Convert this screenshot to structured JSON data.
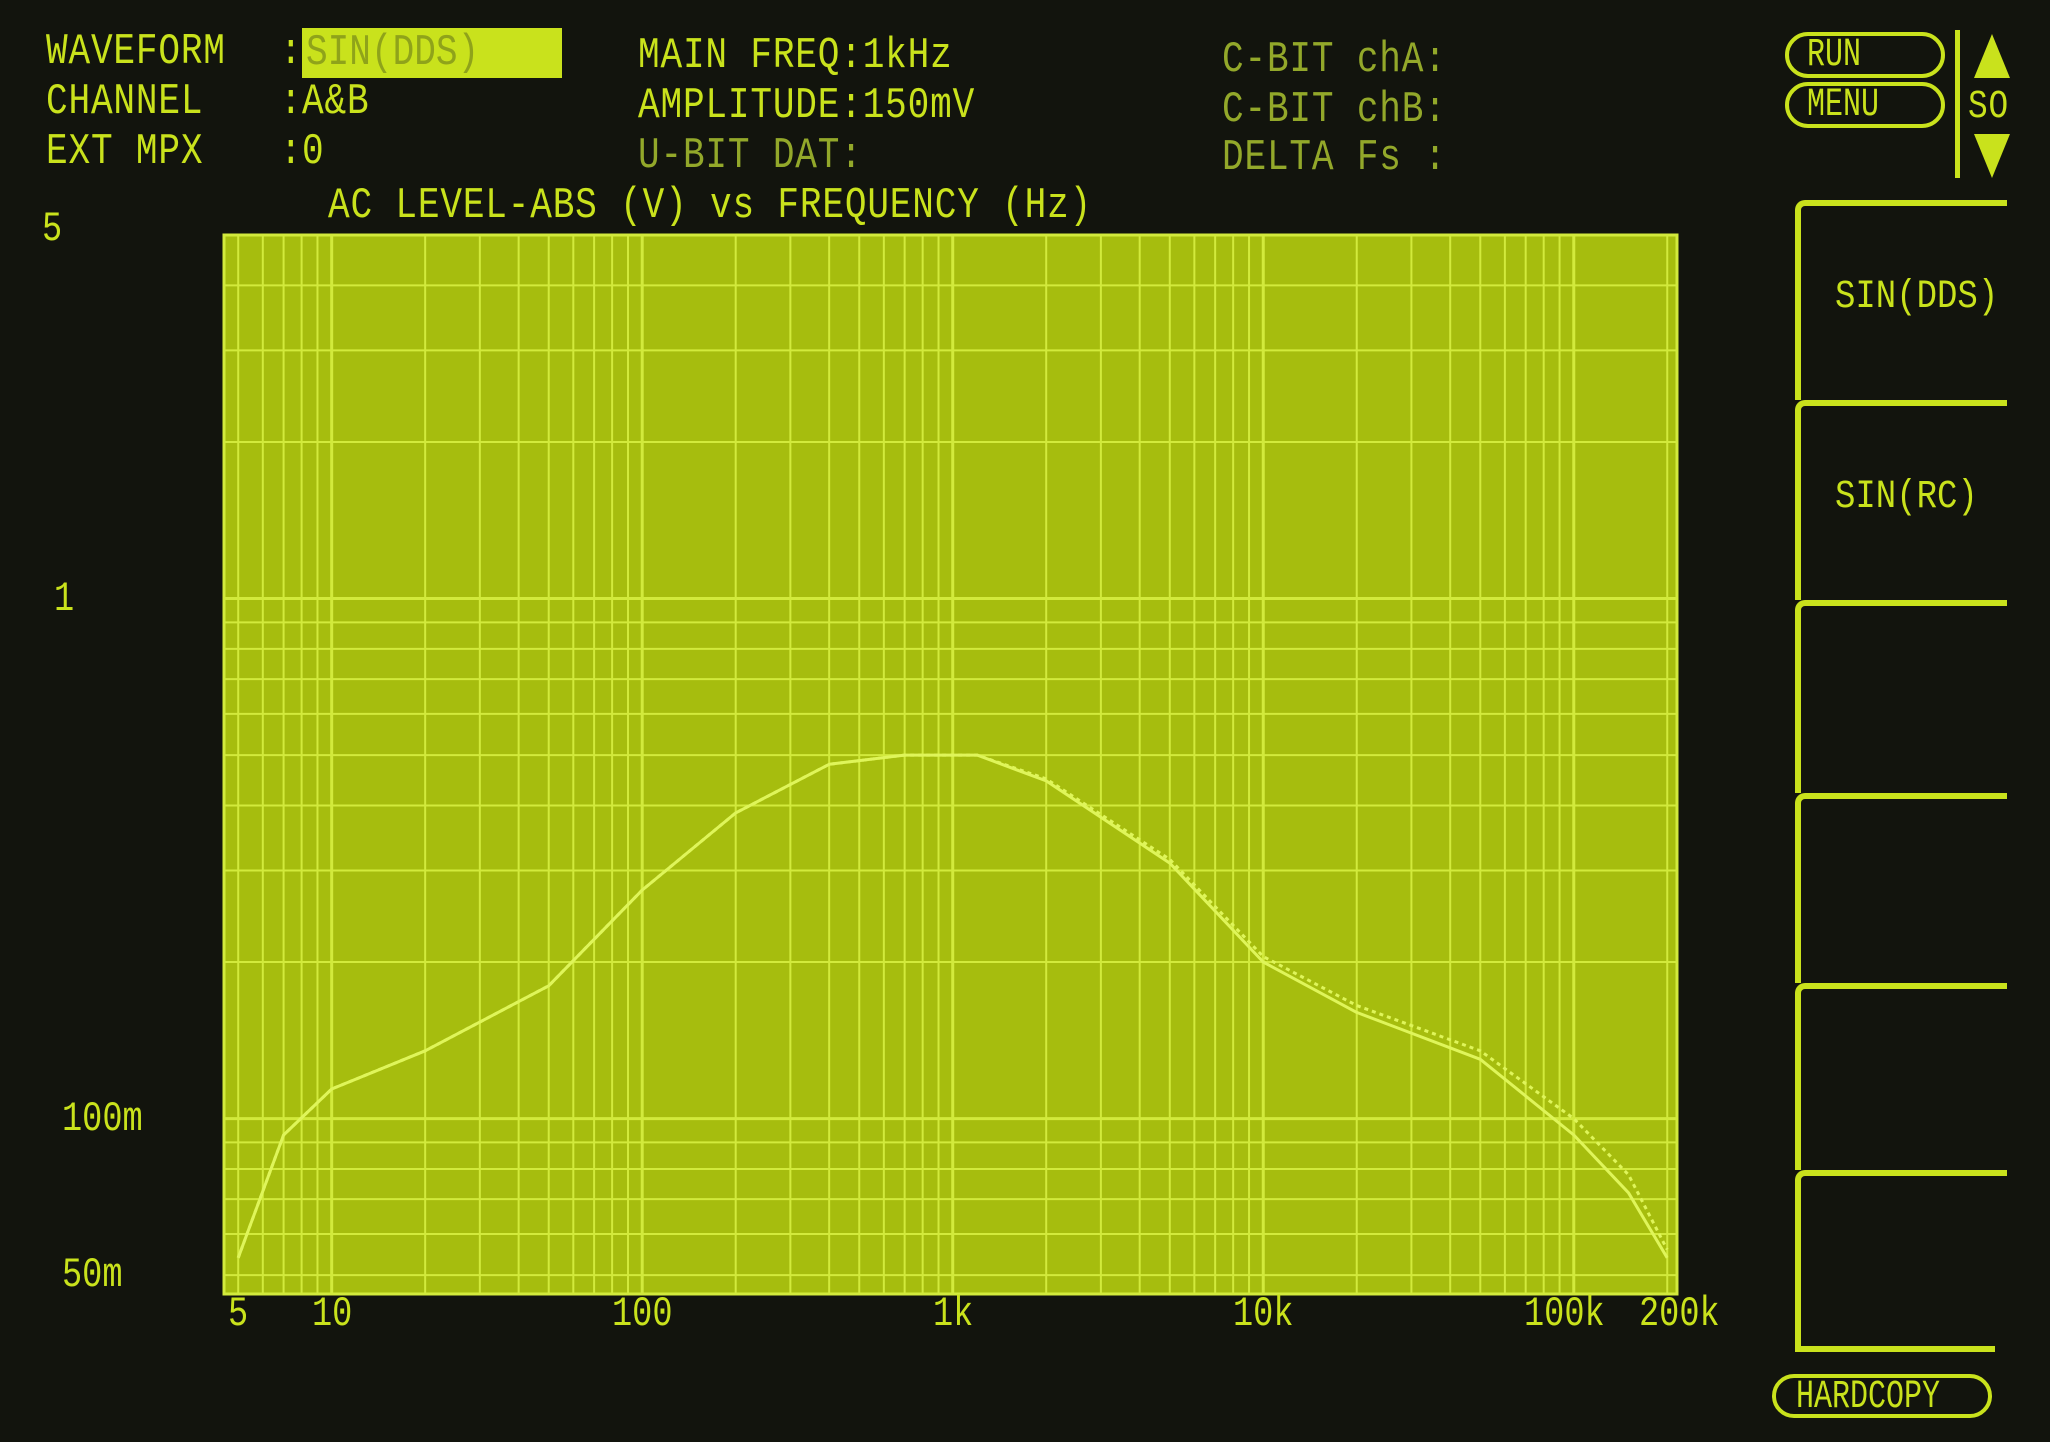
{
  "header": {
    "waveform_label": "WAVEFORM",
    "waveform_value": "SIN(DDS)",
    "channel_label": "CHANNEL",
    "channel_value": "A&B",
    "ext_mpx_label": "EXT MPX",
    "ext_mpx_value": "0",
    "colon": ":",
    "main_freq": "MAIN FREQ:1kHz",
    "amplitude": "AMPLITUDE:150mV",
    "u_bit_dat": "U-BIT DAT:",
    "c_bit_cha": "C-BIT chA:",
    "c_bit_chb": "C-BIT chB:",
    "delta_fs": "DELTA Fs :"
  },
  "controls": {
    "run_label": "RUN",
    "menu_label": "MENU",
    "scroll_label": "SO",
    "hardcopy_label": "HARDCOPY",
    "up_icon": "triangle-up-icon",
    "down_icon": "triangle-down-icon"
  },
  "softkeys": [
    "SIN(DDS)",
    "SIN(RC)",
    "",
    "",
    "",
    ""
  ],
  "colors": {
    "phosphor": "#c9e21c",
    "plot_bg": "#a6bd0e",
    "grid": "#d2ea3c",
    "background": "#12140d"
  },
  "chart_data": {
    "type": "line",
    "title": "AC LEVEL-ABS (V) vs FREQUENCY (Hz)",
    "xscale": "log",
    "yscale": "log",
    "xlim": [
      4.5,
      215000
    ],
    "ylim": [
      0.046,
      5
    ],
    "grid": true,
    "x_ticks": [
      {
        "value": 5,
        "label": "5"
      },
      {
        "value": 10,
        "label": "10"
      },
      {
        "value": 100,
        "label": "100"
      },
      {
        "value": 1000,
        "label": "1k"
      },
      {
        "value": 10000,
        "label": "10k"
      },
      {
        "value": 100000,
        "label": "100k"
      },
      {
        "value": 200000,
        "label": "200k"
      }
    ],
    "y_ticks": [
      {
        "value": 5,
        "label": "5"
      },
      {
        "value": 1,
        "label": "1"
      },
      {
        "value": 0.1,
        "label": "100m"
      },
      {
        "value": 0.05,
        "label": "50m"
      }
    ],
    "x": [
      5,
      7,
      10,
      20,
      50,
      100,
      200,
      400,
      700,
      1000,
      1200,
      2000,
      5000,
      10000,
      20000,
      50000,
      100000,
      150000,
      200000
    ],
    "series": [
      {
        "values": [
          0.054,
          0.093,
          0.114,
          0.135,
          0.18,
          0.275,
          0.387,
          0.48,
          0.5,
          0.5,
          0.5,
          0.446,
          0.31,
          0.2,
          0.16,
          0.13,
          0.093,
          0.072,
          0.054
        ]
      },
      {
        "values": [
          0.054,
          0.093,
          0.114,
          0.135,
          0.18,
          0.275,
          0.387,
          0.48,
          0.5,
          0.5,
          0.5,
          0.45,
          0.315,
          0.205,
          0.165,
          0.135,
          0.1,
          0.078,
          0.056
        ]
      }
    ]
  }
}
